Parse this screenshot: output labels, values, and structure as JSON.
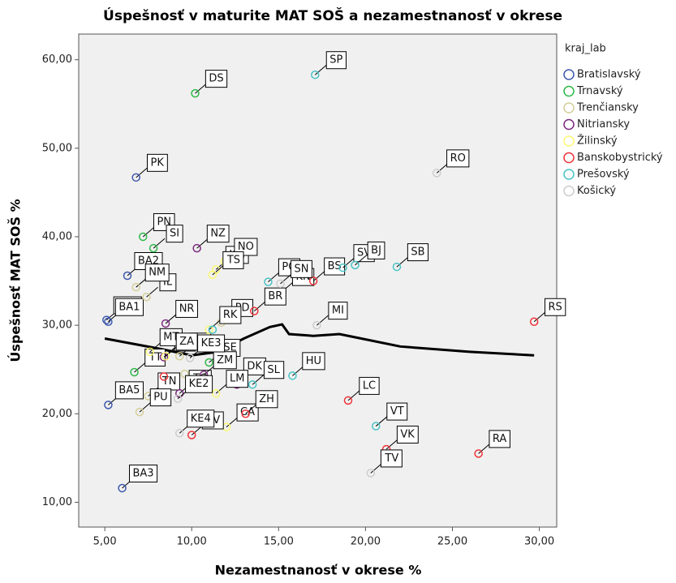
{
  "chart_data": {
    "type": "scatter",
    "title": "Úspešnosť v maturite MAT SOŠ a nezamestnanosť v okrese",
    "x_label": "Nezamestnanosť v okrese %",
    "y_label": "Úspešnosť MAT SOŠ %",
    "legend_title": "kraj_lab",
    "legend": "right",
    "xlim": [
      3.5,
      31
    ],
    "ylim": [
      7.2,
      62.9
    ],
    "xticks": [
      {
        "value": 5,
        "label": "5,00"
      },
      {
        "value": 10,
        "label": "10,00"
      },
      {
        "value": 15,
        "label": "15,00"
      },
      {
        "value": 20,
        "label": "20,00"
      },
      {
        "value": 25,
        "label": "25,00"
      },
      {
        "value": 30,
        "label": "30,00"
      }
    ],
    "yticks": [
      {
        "value": 10,
        "label": "10,00"
      },
      {
        "value": 20,
        "label": "20,00"
      },
      {
        "value": 30,
        "label": "30,00"
      },
      {
        "value": 40,
        "label": "40,00"
      },
      {
        "value": 50,
        "label": "50,00"
      },
      {
        "value": 60,
        "label": "60,00"
      }
    ],
    "series": [
      {
        "name": "Bratislavský",
        "color": "#3e58ac",
        "x": [
          6.8,
          6.3,
          5.1,
          5.2,
          5.2,
          6.0
        ],
        "y": [
          46.7,
          35.6,
          30.6,
          30.4,
          21.0,
          11.6
        ],
        "labels": [
          "PK",
          "BA2",
          "BA4",
          "BA1",
          "BA5",
          "BA3"
        ]
      },
      {
        "name": "Trnavský",
        "color": "#2eb848",
        "x": [
          10.2,
          7.2,
          7.8,
          6.7,
          11.0
        ],
        "y": [
          56.2,
          40.0,
          38.7,
          24.7,
          25.8
        ],
        "labels": [
          "DS",
          "PN",
          "SI",
          "TT",
          "SE"
        ]
      },
      {
        "name": "Trenčiansky",
        "color": "#d3ce97",
        "x": [
          7.4,
          6.8,
          7.5,
          9.3,
          11.7,
          7.0,
          9.6
        ],
        "y": [
          33.2,
          34.3,
          22.0,
          26.5,
          30.3,
          20.2,
          24.5
        ],
        "labels": [
          "IL",
          "NM",
          "TN",
          "PB",
          "PD",
          "PU",
          null
        ]
      },
      {
        "name": "Nitriansky",
        "color": "#7c287d",
        "x": [
          10.3,
          8.5,
          8.4,
          15.2,
          9.3,
          10.7,
          12.6
        ],
        "y": [
          38.7,
          30.2,
          26.4,
          33.8,
          22.3,
          24.4,
          23.3
        ],
        "labels": [
          "NZ",
          "NR",
          "SA",
          "KN",
          "TO",
          "ZM",
          null
        ]
      },
      {
        "name": "Žilinský",
        "color": "#fbf873",
        "x": [
          11.4,
          11.9,
          11.2,
          11.0,
          7.6,
          8.5,
          12.0,
          12.4,
          11.4
        ],
        "y": [
          36.3,
          37.2,
          35.7,
          29.5,
          27.0,
          26.5,
          18.5,
          23.7,
          22.3
        ],
        "labels": [
          "KM",
          "NO",
          "TS",
          "RK",
          "MT",
          "ZA",
          "CA",
          "DK",
          "LM"
        ]
      },
      {
        "name": "Banskobystrický",
        "color": "#ef3338",
        "x": [
          17.0,
          13.6,
          19.0,
          21.2,
          26.5,
          29.7,
          10.0,
          13.1,
          8.4
        ],
        "y": [
          35.0,
          31.6,
          21.5,
          16.0,
          15.5,
          30.4,
          17.6,
          20.0,
          24.2
        ],
        "labels": [
          "BS",
          "BR",
          "LC",
          "VK",
          "RA",
          "RS",
          "ZV",
          "ZH",
          null
        ]
      },
      {
        "name": "Prešovský",
        "color": "#48c2c5",
        "x": [
          17.1,
          18.7,
          19.4,
          21.8,
          14.4,
          20.6,
          15.8,
          13.5,
          11.2
        ],
        "y": [
          58.3,
          36.5,
          36.8,
          36.6,
          34.9,
          18.6,
          24.3,
          23.3,
          29.5
        ],
        "labels": [
          "SP",
          "SV",
          "BJ",
          "SB",
          "PO",
          "VT",
          "HU",
          "SL",
          null
        ]
      },
      {
        "name": "Košický",
        "color": "#cccccc",
        "x": [
          24.1,
          17.2,
          9.2,
          9.3,
          9.9,
          20.3,
          15.1
        ],
        "y": [
          47.2,
          30.0,
          21.7,
          17.8,
          26.3,
          13.3,
          34.7
        ],
        "labels": [
          "RO",
          "MI",
          "KE2",
          "KE4",
          "KE3",
          "TV",
          "SN"
        ]
      }
    ],
    "fit_line": {
      "color": "#000000",
      "x": [
        5,
        8,
        10,
        11.5,
        13,
        14.5,
        15.2,
        15.6,
        17,
        18.5,
        19.5,
        22,
        26,
        29.7
      ],
      "y": [
        28.5,
        27.4,
        26.6,
        27.0,
        28.5,
        29.8,
        30.1,
        29.0,
        28.8,
        29.0,
        28.6,
        27.6,
        27.0,
        26.6
      ]
    }
  }
}
